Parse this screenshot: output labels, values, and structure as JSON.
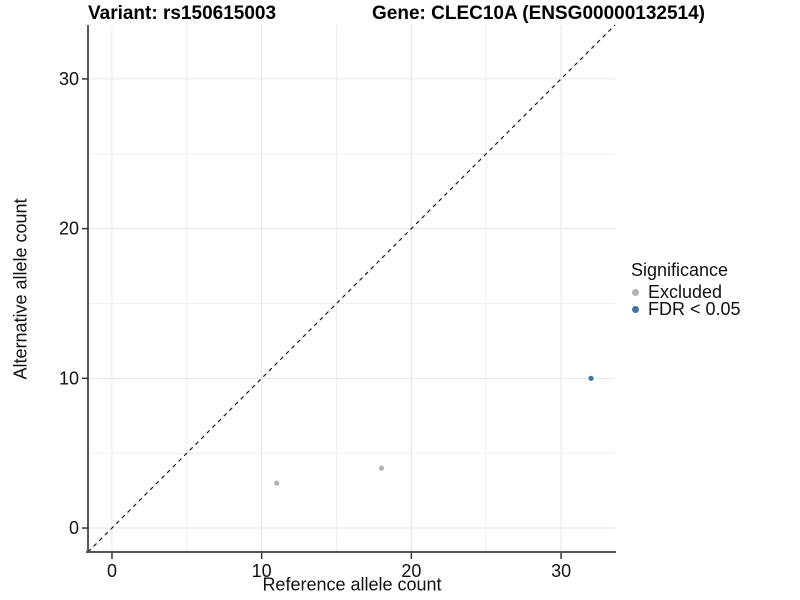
{
  "chart_data": {
    "type": "scatter",
    "title_left": "Variant: rs150615003",
    "title_right": "Gene: CLEC10A (ENSG00000132514)",
    "xlabel": "Reference allele count",
    "ylabel": "Alternative allele count",
    "xlim": [
      -1.6,
      33.6
    ],
    "ylim": [
      -1.6,
      33.6
    ],
    "x_ticks": [
      0,
      10,
      20,
      30
    ],
    "y_ticks": [
      0,
      10,
      20,
      30
    ],
    "x_minor_ticks": [
      5,
      15,
      25
    ],
    "y_minor_ticks": [
      5,
      15,
      25
    ],
    "grid": true,
    "identity_line": {
      "type": "y = x",
      "style": "dashed",
      "color": "#1a1a1a"
    },
    "series": [
      {
        "name": "Excluded",
        "color": "#b3b3b3",
        "points": [
          [
            11,
            3
          ],
          [
            18,
            4
          ]
        ]
      },
      {
        "name": "FDR < 0.05",
        "color": "#3f72ab",
        "points": [
          [
            32,
            10
          ]
        ]
      }
    ],
    "legend": {
      "title": "Significance",
      "position": "right"
    }
  },
  "style_colors": {
    "grid_major": "#e6e6e6",
    "grid_minor": "#efefef",
    "axis_line_y": "#222222",
    "axis_line_x": "#555555",
    "tick_mark": "#333333"
  }
}
